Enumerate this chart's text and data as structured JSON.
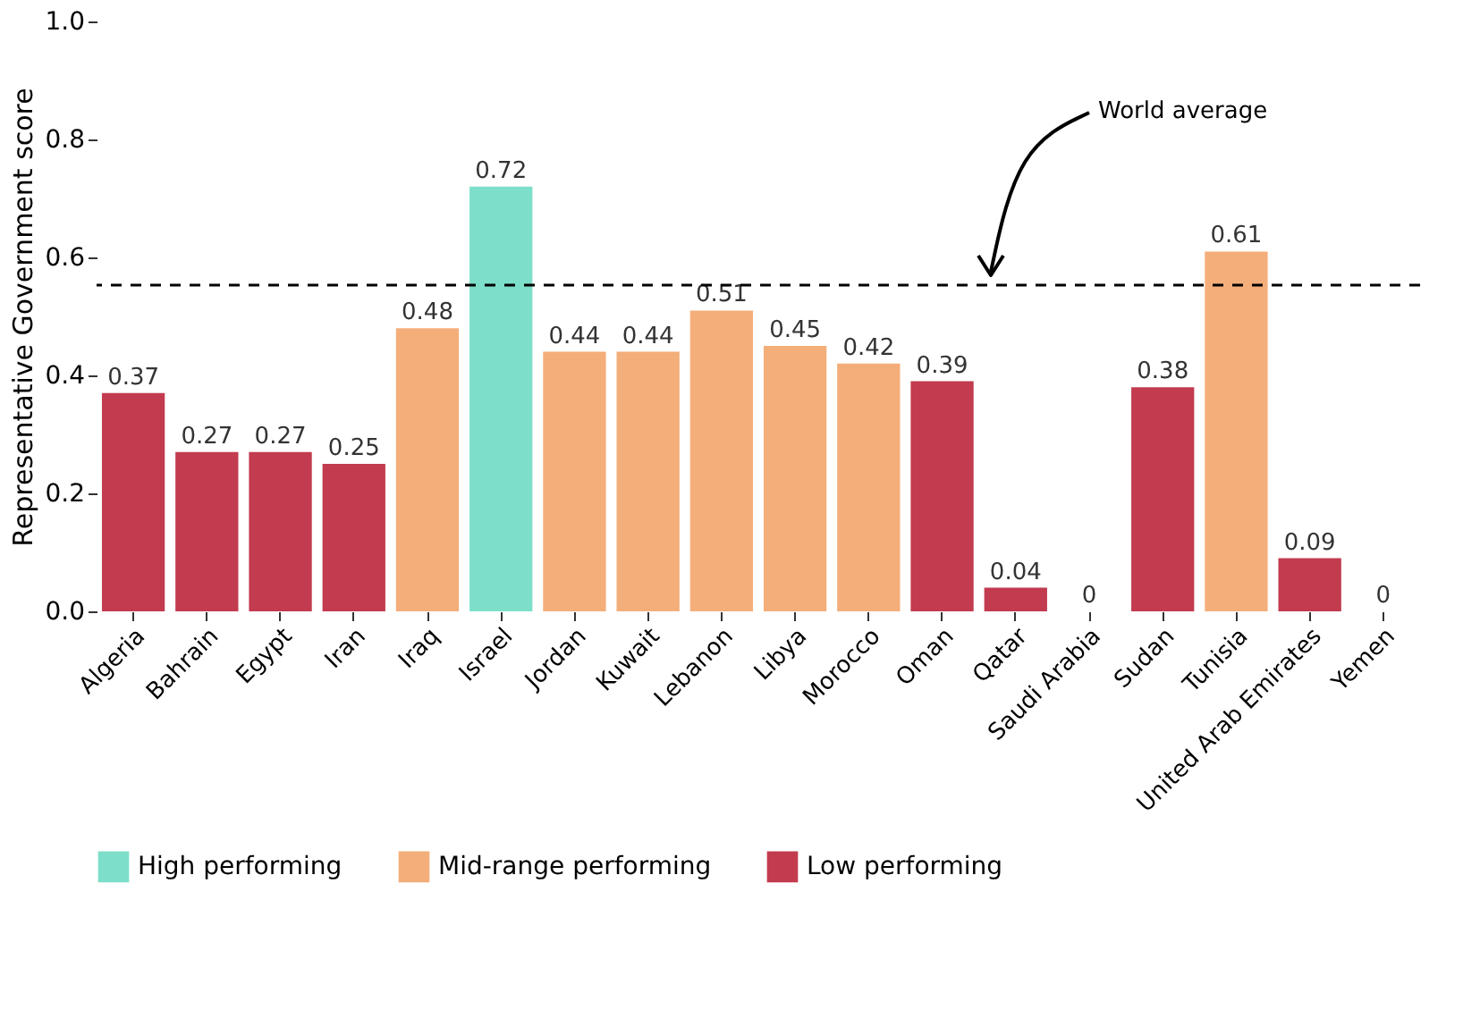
{
  "chart_data": {
    "type": "bar",
    "ylabel": "Representative Government score",
    "categories": [
      "Algeria",
      "Bahrain",
      "Egypt",
      "Iran",
      "Iraq",
      "Israel",
      "Jordan",
      "Kuwait",
      "Lebanon",
      "Libya",
      "Morocco",
      "Oman",
      "Qatar",
      "Saudi Arabia",
      "Sudan",
      "Tunisia",
      "United Arab Emirates",
      "Yemen"
    ],
    "series": [
      {
        "name": "High performing",
        "color": "#7ddfc9",
        "values": [
          null,
          null,
          null,
          null,
          null,
          0.72,
          null,
          null,
          null,
          null,
          null,
          null,
          null,
          null,
          null,
          null,
          null,
          null
        ]
      },
      {
        "name": "Mid-range performing",
        "color": "#f4ae7a",
        "values": [
          null,
          null,
          null,
          null,
          0.48,
          null,
          0.44,
          0.44,
          0.51,
          0.45,
          0.42,
          null,
          null,
          null,
          null,
          0.61,
          null,
          null
        ]
      },
      {
        "name": "Low performing",
        "color": "#c23b4f",
        "values": [
          0.37,
          0.27,
          0.27,
          0.25,
          null,
          null,
          null,
          null,
          null,
          null,
          null,
          0.39,
          0.04,
          0,
          0.38,
          null,
          0.09,
          0
        ]
      }
    ],
    "ylim": [
      0,
      1
    ],
    "yticks": [
      {
        "value": 0,
        "label": "0.0"
      },
      {
        "value": 0.2,
        "label": "0.2"
      },
      {
        "value": 0.4,
        "label": "0.4"
      },
      {
        "value": 0.6,
        "label": "0.6"
      },
      {
        "value": 0.8,
        "label": "0.8"
      },
      {
        "value": 1,
        "label": "1.0"
      }
    ],
    "ref_lines": [
      {
        "axis": "y",
        "value": 0.553,
        "line_style": "dashed",
        "color": "#000000"
      }
    ],
    "annotations": [
      "World average"
    ],
    "data_labels": true,
    "grid": false,
    "legend": "bottom"
  }
}
